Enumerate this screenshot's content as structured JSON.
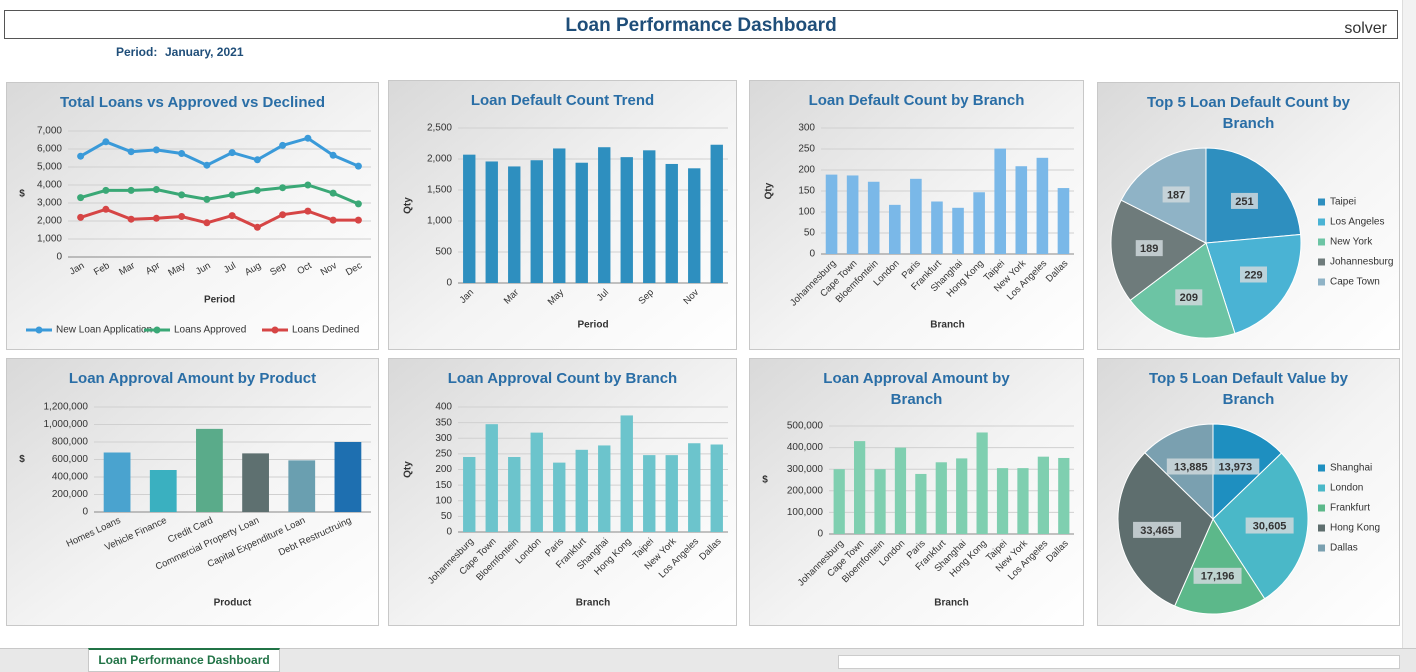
{
  "header": {
    "title": "Loan Performance Dashboard",
    "period_label": "Period:",
    "period": "January, 2021",
    "logo": "solver"
  },
  "tabs": [
    "Loan Performance Dashboard"
  ],
  "chart_data": [
    {
      "type": "line",
      "title": "Total Loans vs Approved vs Declined",
      "x_label": "Period",
      "y_label": "$",
      "categories": [
        "Jan",
        "Feb",
        "Mar",
        "Apr",
        "May",
        "Jun",
        "Jul",
        "Aug",
        "Sep",
        "Oct",
        "Nov",
        "Dec"
      ],
      "series": [
        {
          "name": "New Loan Application",
          "color": "#3a9ad9",
          "values": [
            5600,
            6400,
            5850,
            5950,
            5750,
            5100,
            5800,
            5400,
            6200,
            6600,
            5650,
            5050
          ]
        },
        {
          "name": "Loans Approved",
          "color": "#3aa876",
          "values": [
            3300,
            3700,
            3700,
            3750,
            3450,
            3200,
            3450,
            3700,
            3850,
            4000,
            3550,
            2950
          ]
        },
        {
          "name": "Loans Dedined",
          "color": "#d64545",
          "values": [
            2200,
            2650,
            2100,
            2150,
            2250,
            1900,
            2300,
            1650,
            2350,
            2550,
            2050,
            2050
          ]
        }
      ],
      "ylim": [
        0,
        7000
      ],
      "yticks": [
        0,
        {
          "value": 1000,
          "label": "1,000"
        },
        {
          "value": 2000,
          "label": "2,000"
        },
        {
          "value": 3000,
          "label": "3,000"
        },
        {
          "value": 4000,
          "label": "4,000"
        },
        {
          "value": 5000,
          "label": "5,000"
        },
        {
          "value": 6000,
          "label": "6,000"
        },
        {
          "value": 7000,
          "label": "7,000"
        }
      ],
      "grid": true,
      "legend": "bottom"
    },
    {
      "type": "bar",
      "title": "Loan Default Count Trend",
      "x_label": "Period",
      "y_label": "Qty",
      "categories": [
        "Jan",
        null,
        "Mar",
        null,
        "May",
        null,
        "Jul",
        null,
        "Sep",
        null,
        "Nov",
        null
      ],
      "values": [
        2070,
        1960,
        1880,
        1980,
        2170,
        1940,
        2190,
        2030,
        2140,
        1920,
        1850,
        2230
      ],
      "color": "#2e8fbf",
      "ylim": [
        0,
        2500
      ],
      "yticks": [
        0,
        500,
        {
          "value": 1000,
          "label": "1,000"
        },
        {
          "value": 1500,
          "label": "1,500"
        },
        {
          "value": 2000,
          "label": "2,000"
        },
        {
          "value": 2500,
          "label": "2,500"
        }
      ],
      "grid": true
    },
    {
      "type": "bar",
      "title": "Loan Default Count by Branch",
      "x_label": "Branch",
      "y_label": "Qty",
      "categories": [
        "Johannesburg",
        "Cape Town",
        "Bloemfontein",
        "London",
        "Paris",
        "Frankfurt",
        "Shanghai",
        "Hong Kong",
        "Taipei",
        "New York",
        "Los Angeles",
        "Dallas"
      ],
      "values": [
        189,
        187,
        172,
        117,
        179,
        125,
        110,
        147,
        251,
        209,
        229,
        157
      ],
      "color": "#7ab8e8",
      "ylim": [
        0,
        300
      ],
      "yticks": [
        0,
        50,
        100,
        150,
        200,
        250,
        300
      ],
      "grid": true
    },
    {
      "type": "pie",
      "title": "Top 5 Loan Default Count by Branch",
      "categories": [
        "Taipei",
        "Los Angeles",
        "New York",
        "Johannesburg",
        "Cape Town"
      ],
      "values": [
        251,
        229,
        209,
        189,
        187
      ],
      "colors": [
        "#2e8fbf",
        "#4ab3d4",
        "#6cc4a4",
        "#6e7b7b",
        "#8fb3c6"
      ],
      "legend": "right"
    },
    {
      "type": "bar",
      "title": "Loan Approval Amount by Product",
      "x_label": "Product",
      "y_label": "$",
      "categories": [
        "Homes Loans",
        "Vehicle Finance",
        "Credit Card",
        "Commercial Property Loan",
        "Capital Expenditure Loan",
        "Debt Restructruing"
      ],
      "values": [
        680000,
        480000,
        950000,
        670000,
        590000,
        800000
      ],
      "colors": [
        "#4aa3cf",
        "#3ab0c0",
        "#5aab8a",
        "#5e7070",
        "#6a9fb0",
        "#1e6fb0"
      ],
      "ylim": [
        0,
        1200000
      ],
      "yticks": [
        0,
        {
          "value": 200000,
          "label": "200,000"
        },
        {
          "value": 400000,
          "label": "400,000"
        },
        {
          "value": 600000,
          "label": "600,000"
        },
        {
          "value": 800000,
          "label": "800,000"
        },
        {
          "value": 1000000,
          "label": "1,000,000"
        },
        {
          "value": 1200000,
          "label": "1,200,000"
        }
      ],
      "grid": true
    },
    {
      "type": "bar",
      "title": "Loan Approval Count by Branch",
      "x_label": "Branch",
      "y_label": "Qty",
      "categories": [
        "Johannesburg",
        "Cape Town",
        "Bloemfontein",
        "London",
        "Paris",
        "Frankfurt",
        "Shanghai",
        "Hong Kong",
        "Taipei",
        "New York",
        "Los Angeles",
        "Dallas"
      ],
      "values": [
        240,
        345,
        240,
        318,
        222,
        263,
        277,
        373,
        246,
        246,
        284,
        280
      ],
      "color": "#6cc4cc",
      "ylim": [
        0,
        400
      ],
      "yticks": [
        0,
        50,
        100,
        150,
        200,
        250,
        300,
        350,
        400
      ],
      "grid": true
    },
    {
      "type": "bar",
      "title": "Loan Approval Amount by Branch",
      "x_label": "Branch",
      "y_label": "$",
      "categories": [
        "Johannesburg",
        "Cape Town",
        "Bloemfontein",
        "London",
        "Paris",
        "Frankfurt",
        "Shanghai",
        "Hong Kong",
        "Taipei",
        "New York",
        "Los Angeles",
        "Dallas"
      ],
      "values": [
        300000,
        430000,
        300000,
        400000,
        278000,
        332000,
        350000,
        470000,
        305000,
        305000,
        358000,
        352000
      ],
      "color": "#7fcfb0",
      "ylim": [
        0,
        500000
      ],
      "yticks": [
        0,
        {
          "value": 100000,
          "label": "100,000"
        },
        {
          "value": 200000,
          "label": "200,000"
        },
        {
          "value": 300000,
          "label": "300,000"
        },
        {
          "value": 400000,
          "label": "400,000"
        },
        {
          "value": 500000,
          "label": "500,000"
        }
      ],
      "grid": true
    },
    {
      "type": "pie",
      "title": "Top 5 Loan Default Value by Branch",
      "categories": [
        "Shanghai",
        "London",
        "Frankfurt",
        "Hong Kong",
        "Dallas"
      ],
      "values": [
        13973,
        30605,
        17196,
        33465,
        13885
      ],
      "value_labels": [
        "13,973",
        "30,605",
        "17,196",
        "33,465",
        "13,885"
      ],
      "colors": [
        "#1e8fc0",
        "#4ab8c8",
        "#5cb88a",
        "#5e6e6e",
        "#7aa0b0"
      ],
      "legend": "right"
    }
  ]
}
